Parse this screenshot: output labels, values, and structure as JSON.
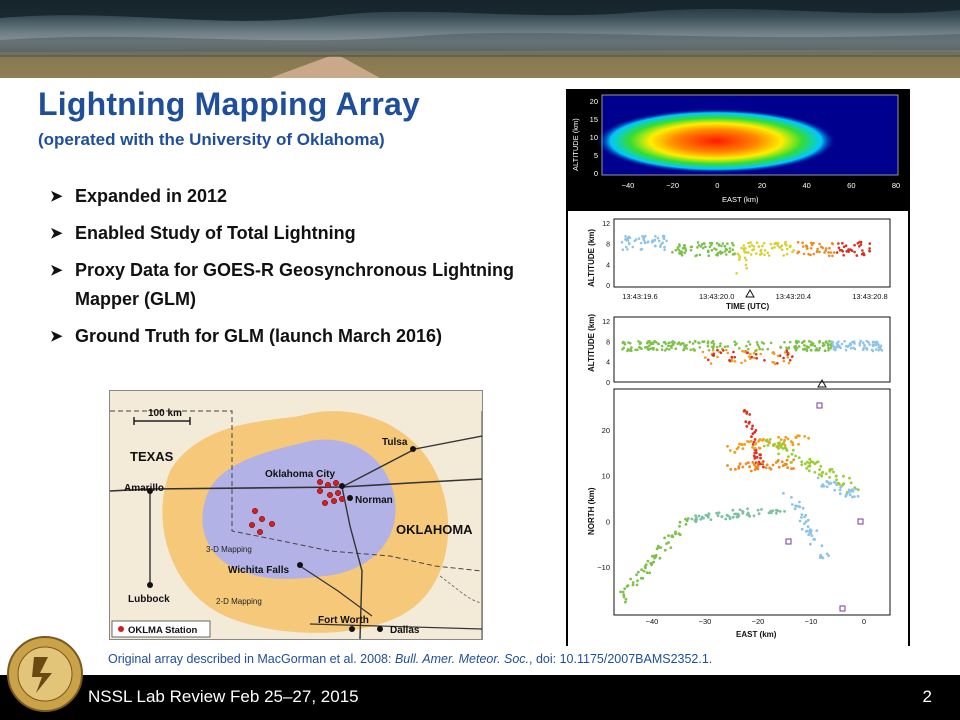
{
  "slide": {
    "title": "Lightning Mapping Array",
    "subtitle": "(operated with the University of Oklahoma)",
    "bullets": [
      "Expanded in 2012",
      "Enabled Study of Total Lightning",
      "Proxy Data for GOES-R Geosynchronous Lightning Mapper (GLM)",
      "Ground Truth for GLM (launch March 2016)"
    ],
    "bullet_icon": "arrow-bullet-icon",
    "caption_prefix": "Original array described in MacGorman et al. 2008: ",
    "caption_journal": "Bull. Amer. Meteor. Soc.",
    "caption_suffix": ", doi: 10.1175/2007BAMS2352.1.",
    "footer": "NSSL Lab Review Feb 25–27, 2015",
    "page_number": "2",
    "title_color": "#1f4e9a"
  },
  "map": {
    "scale": "100 km",
    "states": [
      "TEXAS",
      "OKLAHOMA"
    ],
    "cities": [
      "Tulsa",
      "Oklahoma City",
      "Norman",
      "Amarillo",
      "Wichita Falls",
      "Lubbock",
      "Fort Worth",
      "Dallas"
    ],
    "zone_3d": "3-D Mapping",
    "zone_2d": "2-D Mapping",
    "legend": "OKLMA Station",
    "colors": {
      "range_2d": "#f5c87a",
      "range_3d": "#b3b2e6",
      "station": "#cc2222"
    }
  },
  "plots": {
    "top": {
      "ylabel": "ALTITUDE (km)",
      "xlabel": "EAST (km)",
      "xticks": [
        "−40",
        "−20",
        "0",
        "20",
        "40",
        "60",
        "80"
      ],
      "yticks": [
        "20",
        "15",
        "10",
        "5",
        "0"
      ]
    },
    "time": {
      "ylabel": "ALTITUDE (km)",
      "xlabel": "TIME (UTC)",
      "xticks": [
        "13:43:19.6",
        "13:43:20.0",
        "13:43:20.4",
        "13:43:20.8"
      ],
      "yticks": [
        "12",
        "8",
        "4",
        "0"
      ]
    },
    "alt": {
      "ylabel": "ALTITUDE (km)",
      "yticks": [
        "12",
        "8",
        "4",
        "0"
      ]
    },
    "plan": {
      "ylabel": "NORTH (km)",
      "xlabel": "EAST (km)",
      "xticks": [
        "−40",
        "−30",
        "−20",
        "−10",
        "0"
      ],
      "yticks": [
        "20",
        "10",
        "0",
        "−10"
      ]
    }
  }
}
